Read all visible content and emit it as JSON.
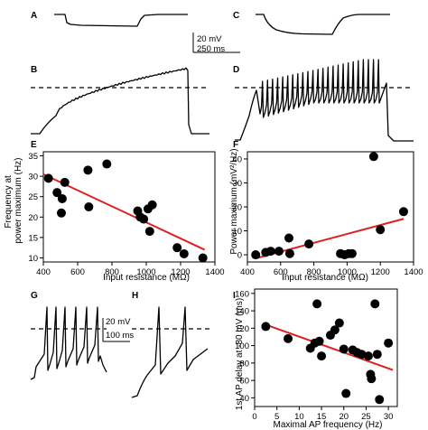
{
  "panels": {
    "A": "A",
    "B": "B",
    "C": "C",
    "D": "D",
    "E": "E",
    "F": "F",
    "G": "G",
    "H": "H",
    "I": "I"
  },
  "scale_bar_top": {
    "voltage": "20 mV",
    "time": "250 ms"
  },
  "scale_bar_bottom": {
    "voltage": "20 mV",
    "time": "100 ms"
  },
  "chart_data": [
    {
      "panel": "E",
      "type": "scatter",
      "xlabel": "Input resistance (MΩ)",
      "ylabel": "Frequency at power maximum (Hz)",
      "ylabel_lines": [
        "Frequency at",
        "power maximum (Hz)"
      ],
      "xlim": [
        400,
        1400
      ],
      "ylim": [
        9,
        36
      ],
      "xticks": [
        400,
        600,
        800,
        1000,
        1200,
        1400
      ],
      "yticks": [
        10,
        15,
        20,
        25,
        30,
        35
      ],
      "points": [
        [
          430,
          29.5
        ],
        [
          480,
          26
        ],
        [
          510,
          24.5
        ],
        [
          505,
          21
        ],
        [
          525,
          28.5
        ],
        [
          660,
          31.5
        ],
        [
          665,
          22.5
        ],
        [
          770,
          33
        ],
        [
          950,
          21.5
        ],
        [
          965,
          20
        ],
        [
          985,
          19.5
        ],
        [
          1010,
          22
        ],
        [
          1035,
          23
        ],
        [
          1020,
          16.5
        ],
        [
          1180,
          12.5
        ],
        [
          1220,
          11
        ],
        [
          1330,
          10
        ]
      ],
      "fit": [
        [
          400,
          30.5
        ],
        [
          1340,
          12
        ]
      ],
      "fit_color": "#e02020"
    },
    {
      "panel": "F",
      "type": "scatter",
      "xlabel": "Input resistance (MΩ)",
      "ylabel": "Power maximum (mV²/Hz)",
      "ylabel_lines": [
        "Power maximum (mV²/Hz)"
      ],
      "xlim": [
        400,
        1400
      ],
      "ylim": [
        -3,
        43
      ],
      "xticks": [
        400,
        600,
        800,
        1000,
        1200,
        1400
      ],
      "yticks": [
        0,
        10,
        20,
        30,
        40
      ],
      "points": [
        [
          450,
          0
        ],
        [
          510,
          1
        ],
        [
          540,
          1.5
        ],
        [
          590,
          1.5
        ],
        [
          650,
          7
        ],
        [
          655,
          0.5
        ],
        [
          770,
          4.5
        ],
        [
          960,
          0.5
        ],
        [
          985,
          0
        ],
        [
          1010,
          0.5
        ],
        [
          1030,
          0.5
        ],
        [
          1160,
          41
        ],
        [
          1200,
          10.5
        ],
        [
          1340,
          18
        ]
      ],
      "fit": [
        [
          450,
          -1.5
        ],
        [
          1340,
          15
        ]
      ],
      "fit_color": "#e02020"
    },
    {
      "panel": "I",
      "type": "scatter",
      "xlabel": "Maximal AP frequency (Hz)",
      "ylabel": "1st AP delay at -80 mV (ms)",
      "ylabel_lines": [
        "1st AP delay at -80 mV (ms)"
      ],
      "xlim": [
        0,
        32
      ],
      "ylim": [
        30,
        165
      ],
      "xticks": [
        0,
        5,
        10,
        15,
        20,
        25,
        30
      ],
      "yticks": [
        40,
        60,
        80,
        100,
        120,
        140,
        160
      ],
      "points": [
        [
          2.5,
          122
        ],
        [
          7.5,
          108
        ],
        [
          12.5,
          97
        ],
        [
          13.5,
          103
        ],
        [
          14,
          148
        ],
        [
          14.5,
          105
        ],
        [
          15,
          88
        ],
        [
          17,
          112
        ],
        [
          18,
          118
        ],
        [
          19,
          126
        ],
        [
          20,
          96
        ],
        [
          20.5,
          45
        ],
        [
          22,
          95
        ],
        [
          23,
          92
        ],
        [
          24,
          90
        ],
        [
          25.5,
          88
        ],
        [
          26,
          67
        ],
        [
          26.2,
          62
        ],
        [
          27,
          148
        ],
        [
          27.5,
          90
        ],
        [
          28,
          38
        ],
        [
          30,
          103
        ]
      ],
      "fit": [
        [
          2.5,
          124
        ],
        [
          31,
          72
        ]
      ],
      "fit_color": "#e02020"
    }
  ]
}
